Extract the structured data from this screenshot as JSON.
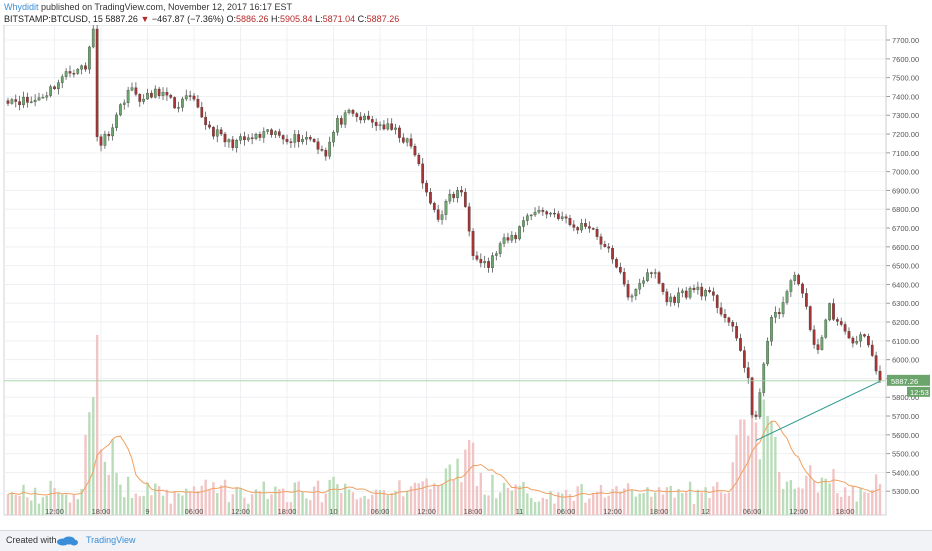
{
  "header": {
    "user": "Whydidit",
    "published": "published on TradingView.com, November 12, 2017 16:17 EST",
    "symbol": "BITSTAMP:BTCUSD, 15",
    "last": "5887.26",
    "change": "−467.87 (−7.36%)",
    "o_label": "O:",
    "o": "5886.26",
    "h_label": "H:",
    "h": "5905.84",
    "l_label": "L:",
    "l": "5871.04",
    "c_label": "C:",
    "c": "5887.26"
  },
  "footer": {
    "created": "Created with",
    "brand": "TradingView"
  },
  "colors": {
    "up": "#6ca56c",
    "down": "#a73434",
    "wick": "#555555",
    "vol_up": "#b9dcb9",
    "vol_down": "#f1c5c5",
    "ma": "#f0a060",
    "trend": "#2e9b8e",
    "last_badge": "#6ca56c"
  },
  "chart_data": {
    "type": "candlestick",
    "y_ticks": [
      5300,
      5400,
      5500,
      5600,
      5700,
      5800,
      5900,
      6000,
      6100,
      6200,
      6300,
      6400,
      6500,
      6600,
      6700,
      6800,
      6900,
      7000,
      7100,
      7200,
      7300,
      7400,
      7500,
      7600,
      7700
    ],
    "ylim": [
      5280,
      7780
    ],
    "x_ticks": [
      {
        "i": 12,
        "label": "12:00"
      },
      {
        "i": 24,
        "label": "18:00"
      },
      {
        "i": 36,
        "label": "9"
      },
      {
        "i": 48,
        "label": "06:00"
      },
      {
        "i": 60,
        "label": "12:00"
      },
      {
        "i": 72,
        "label": "18:00"
      },
      {
        "i": 84,
        "label": "10"
      },
      {
        "i": 96,
        "label": "06:00"
      },
      {
        "i": 108,
        "label": "12:00"
      },
      {
        "i": 120,
        "label": "18:00"
      },
      {
        "i": 132,
        "label": "11"
      },
      {
        "i": 144,
        "label": "06:00"
      },
      {
        "i": 156,
        "label": "12:00"
      },
      {
        "i": 168,
        "label": "18:00"
      },
      {
        "i": 180,
        "label": "12"
      },
      {
        "i": 192,
        "label": "06:00"
      },
      {
        "i": 204,
        "label": "12:00"
      },
      {
        "i": 216,
        "label": "18:00"
      }
    ],
    "last_price": 5887.26,
    "last_price_label": "5887.26",
    "countdown_label": "12:53",
    "trendline": {
      "from": [
        193,
        5570
      ],
      "to": [
        225,
        5885
      ]
    },
    "price_anchors": [
      [
        0,
        7390
      ],
      [
        6,
        7370
      ],
      [
        10,
        7420
      ],
      [
        14,
        7500
      ],
      [
        18,
        7560
      ],
      [
        20,
        7540
      ],
      [
        21,
        7660
      ],
      [
        22,
        7760
      ],
      [
        23,
        7200
      ],
      [
        24,
        7150
      ],
      [
        27,
        7250
      ],
      [
        31,
        7440
      ],
      [
        35,
        7380
      ],
      [
        39,
        7430
      ],
      [
        43,
        7350
      ],
      [
        47,
        7390
      ],
      [
        52,
        7230
      ],
      [
        57,
        7150
      ],
      [
        62,
        7170
      ],
      [
        68,
        7200
      ],
      [
        73,
        7180
      ],
      [
        78,
        7180
      ],
      [
        82,
        7100
      ],
      [
        85,
        7260
      ],
      [
        88,
        7300
      ],
      [
        93,
        7270
      ],
      [
        97,
        7240
      ],
      [
        101,
        7200
      ],
      [
        105,
        7100
      ],
      [
        108,
        6870
      ],
      [
        111,
        6760
      ],
      [
        114,
        6860
      ],
      [
        117,
        6900
      ],
      [
        120,
        6580
      ],
      [
        124,
        6500
      ],
      [
        127,
        6610
      ],
      [
        131,
        6660
      ],
      [
        134,
        6780
      ],
      [
        138,
        6790
      ],
      [
        142,
        6770
      ],
      [
        146,
        6700
      ],
      [
        150,
        6720
      ],
      [
        154,
        6600
      ],
      [
        157,
        6510
      ],
      [
        160,
        6320
      ],
      [
        163,
        6420
      ],
      [
        167,
        6460
      ],
      [
        170,
        6310
      ],
      [
        174,
        6350
      ],
      [
        178,
        6380
      ],
      [
        182,
        6320
      ],
      [
        186,
        6200
      ],
      [
        189,
        6050
      ],
      [
        191,
        5900
      ],
      [
        192,
        5700
      ],
      [
        193,
        5670
      ],
      [
        195,
        6000
      ],
      [
        197,
        6200
      ],
      [
        200,
        6300
      ],
      [
        203,
        6450
      ],
      [
        205,
        6370
      ],
      [
        207,
        6150
      ],
      [
        209,
        6050
      ],
      [
        212,
        6280
      ],
      [
        214,
        6200
      ],
      [
        217,
        6100
      ],
      [
        220,
        6120
      ],
      [
        222,
        6100
      ],
      [
        224,
        5920
      ],
      [
        225,
        5890
      ]
    ]
  }
}
